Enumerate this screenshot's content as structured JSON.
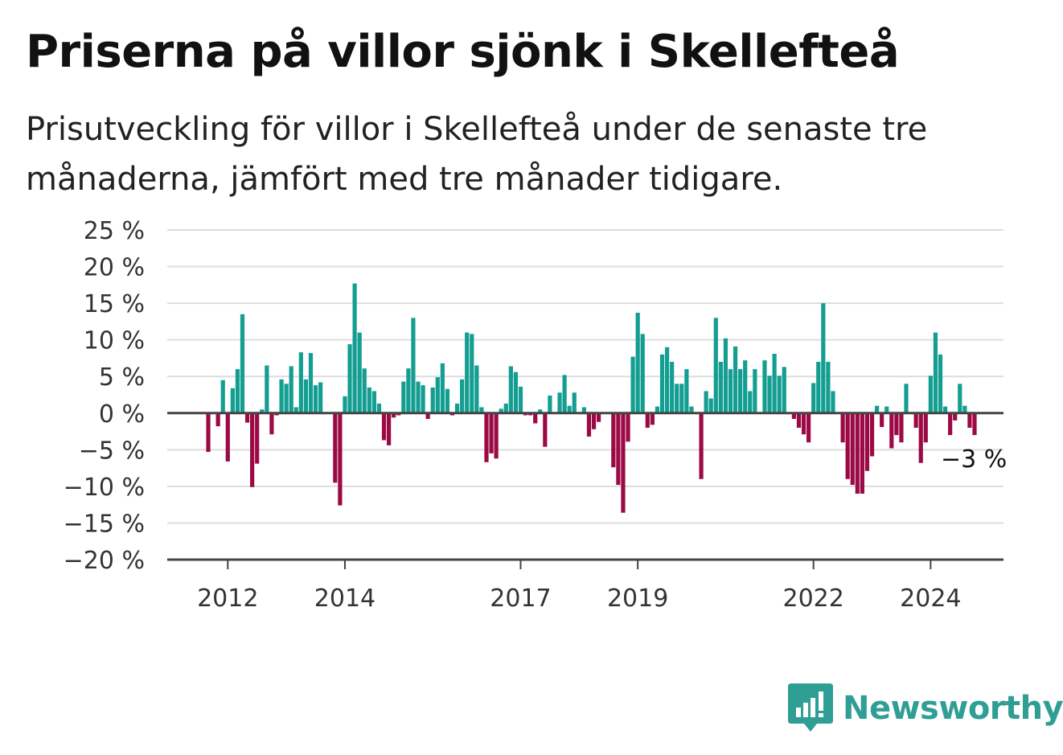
{
  "title": "Priserna på villor sjönk i Skellefteå",
  "subtitle": "Prisutveckling för villor i Skellefteå under de senaste tre månaderna, jämfört med tre månader tidigare.",
  "brand": {
    "name": "Newsworthy",
    "icon": "newsworthy-logo-icon"
  },
  "colors": {
    "positive": "#139e91",
    "negative": "#9c0a46",
    "grid": "#dddddd",
    "axis": "#444444"
  },
  "chart_data": {
    "type": "bar",
    "start_month": "2011-09",
    "frequency": "monthly",
    "ylim": [
      -20,
      25
    ],
    "yticks": [
      25,
      20,
      15,
      10,
      5,
      0,
      -5,
      -10,
      -15,
      -20
    ],
    "ytick_labels": [
      "25 %",
      "20 %",
      "15 %",
      "10 %",
      "5 %",
      "0 %",
      "−5 %",
      "−10 %",
      "−15 %",
      "−20 %"
    ],
    "xtick_labels": [
      "2012",
      "2014",
      "2017",
      "2019",
      "2022",
      "2024"
    ],
    "end_label": "−3 %",
    "grid": true,
    "values": [
      -5.3,
      0,
      -1.8,
      4.5,
      -6.6,
      3.4,
      6,
      13.5,
      -1.3,
      -10.1,
      -6.9,
      0.5,
      6.5,
      -2.9,
      -0.3,
      4.6,
      4,
      6.4,
      0.8,
      8.3,
      4.6,
      8.2,
      3.8,
      4.2,
      0,
      0,
      -9.5,
      -12.6,
      2.3,
      9.4,
      17.7,
      11,
      6.1,
      3.5,
      3,
      1.3,
      -3.7,
      -4.4,
      -0.6,
      -0.3,
      4.3,
      6.1,
      13,
      4.3,
      3.8,
      -0.8,
      3.5,
      4.9,
      6.8,
      3.3,
      -0.3,
      1.3,
      4.6,
      11,
      10.8,
      6.5,
      0.8,
      -6.7,
      -5.5,
      -6.2,
      0.6,
      1.3,
      6.4,
      5.6,
      3.6,
      -0.3,
      -0.3,
      -1.4,
      0.5,
      -4.6,
      2.4,
      0,
      2.8,
      5.2,
      1,
      2.8,
      0,
      0.8,
      -3.2,
      -2.2,
      -1.2,
      0,
      0,
      -7.4,
      -9.8,
      -13.6,
      -3.9,
      7.7,
      13.7,
      10.8,
      -2,
      -1.6,
      0.9,
      8,
      9,
      7,
      4,
      4,
      6,
      0.9,
      0,
      -9,
      3,
      2,
      13,
      7,
      10.2,
      6,
      9.1,
      6,
      7.2,
      3,
      6,
      0,
      7.2,
      5.1,
      8.1,
      5.1,
      6.3,
      0,
      -0.8,
      -2,
      -2.9,
      -4,
      4.1,
      7,
      15,
      7,
      3,
      0,
      -4,
      -9,
      -9.8,
      -11,
      -11,
      -7.9,
      -5.9,
      1,
      -1.9,
      0.9,
      -4.8,
      -3,
      -4,
      4,
      0,
      -2,
      -6.8,
      -4,
      5.1,
      11,
      8,
      0.9,
      -3,
      -1,
      4,
      1,
      -2,
      -3
    ]
  }
}
